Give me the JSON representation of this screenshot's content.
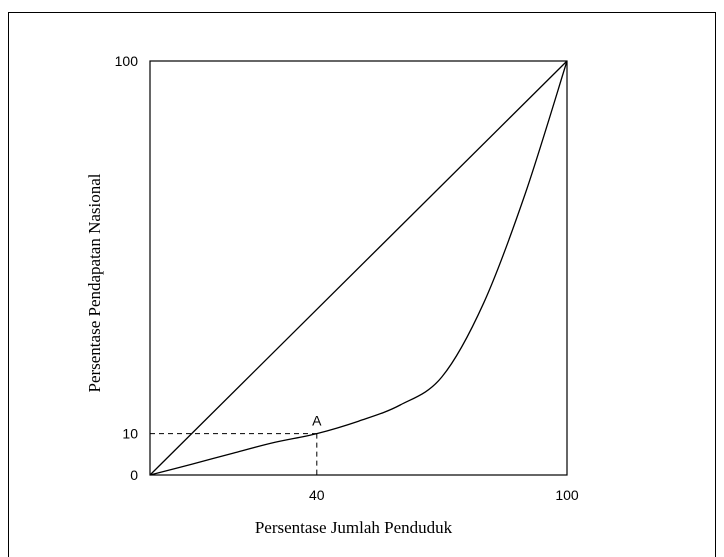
{
  "chart_data": {
    "type": "line",
    "title": "",
    "xlabel": "Persentase Jumlah Penduduk",
    "ylabel": "Persentase Pendapatan Nasional",
    "xlim": [
      0,
      100
    ],
    "ylim": [
      0,
      100
    ],
    "x_ticks": [
      "0",
      "40",
      "100"
    ],
    "y_ticks": [
      "0",
      "10",
      "100"
    ],
    "grid": false,
    "series": [
      {
        "x": [
          0,
          100
        ],
        "y": [
          0,
          100
        ]
      },
      {
        "x": [
          0,
          10,
          20,
          30,
          40,
          50,
          60,
          70,
          80,
          90,
          100
        ],
        "y": [
          0,
          2.6,
          5.3,
          7.9,
          10,
          13,
          16.9,
          23.7,
          41.5,
          68,
          100
        ]
      }
    ],
    "annotations": [
      {
        "label": "A",
        "x": 40,
        "y": 10,
        "guides": true
      }
    ],
    "colors": {
      "line": "#000000",
      "background": "#ffffff"
    }
  }
}
